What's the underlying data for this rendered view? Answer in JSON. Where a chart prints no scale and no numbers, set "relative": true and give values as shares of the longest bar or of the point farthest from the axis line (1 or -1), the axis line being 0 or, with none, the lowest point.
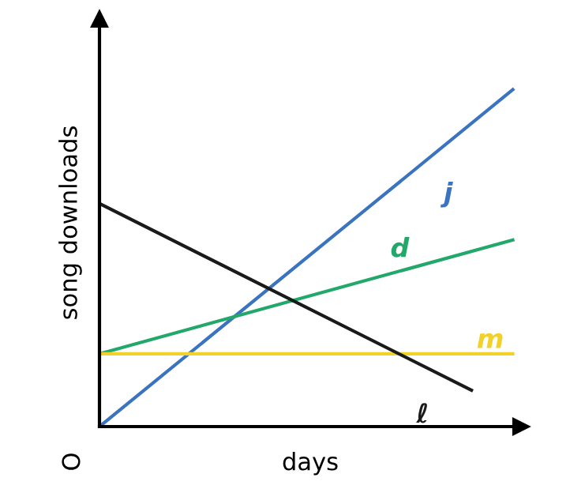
{
  "chart_data": {
    "type": "line",
    "relative": true,
    "xlabel": "days",
    "ylabel": "song downloads",
    "annotations": [
      "O"
    ],
    "categories": [
      null,
      null,
      null,
      null,
      null,
      null,
      null,
      null,
      null,
      null,
      null
    ],
    "series": [
      {
        "name": "j",
        "color": "#3a73c0",
        "values": [
          0,
          null,
          null,
          null,
          null,
          null,
          null,
          null,
          null,
          null,
          1
        ]
      },
      {
        "name": "d",
        "color": "#22a86a",
        "values": [
          0.216,
          null,
          null,
          null,
          null,
          null,
          null,
          null,
          null,
          null,
          0.554
        ]
      },
      {
        "name": "m",
        "color": "#f2d12a",
        "values": [
          0.216,
          null,
          null,
          null,
          null,
          null,
          null,
          null,
          null,
          null,
          0.216
        ]
      },
      {
        "name": "ℓ",
        "color": "#1a1a1a",
        "values": [
          0.662,
          null,
          null,
          null,
          null,
          null,
          null,
          null,
          null,
          0.108,
          null
        ]
      }
    ],
    "legend": false,
    "grid": false
  }
}
